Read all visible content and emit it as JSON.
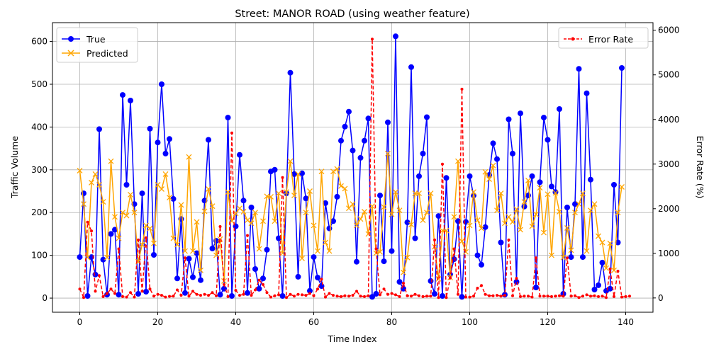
{
  "chart_data": {
    "type": "line",
    "title": "Street: MANOR ROAD (using weather feature)",
    "xlabel": "Time Index",
    "ylabel": "Traffic Volume",
    "y2label": "Error Rate (%)",
    "xlim": [
      -7,
      147
    ],
    "ylim": [
      -33,
      644
    ],
    "y2lim": [
      -320,
      6170
    ],
    "x_ticks": [
      0,
      20,
      40,
      60,
      80,
      100,
      120,
      140
    ],
    "y_ticks": [
      0,
      100,
      200,
      300,
      400,
      500,
      600
    ],
    "y2_ticks": [
      0,
      1000,
      2000,
      3000,
      4000,
      5000,
      6000
    ],
    "grid": true,
    "legend_left": "upper-left",
    "legend_right": "upper-right",
    "series": [
      {
        "name": "True",
        "axis": "left",
        "color": "#0000ff",
        "marker": "circle",
        "values": [
          96,
          245,
          5,
          96,
          55,
          395,
          90,
          8,
          150,
          160,
          8,
          475,
          265,
          462,
          220,
          10,
          245,
          15,
          396,
          101,
          364,
          500,
          338,
          372,
          232,
          46,
          185,
          12,
          92,
          49,
          105,
          42,
          228,
          370,
          116,
          134,
          8,
          22,
          422,
          5,
          168,
          335,
          228,
          12,
          212,
          68,
          22,
          46,
          113,
          296,
          300,
          140,
          5,
          245,
          527,
          290,
          50,
          292,
          233,
          17,
          96,
          48,
          28,
          222,
          163,
          180,
          237,
          368,
          401,
          436,
          345,
          85,
          328,
          368,
          420,
          3,
          10,
          240,
          86,
          411,
          110,
          612,
          38,
          22,
          177,
          540,
          140,
          285,
          338,
          423,
          40,
          10,
          192,
          5,
          281,
          55,
          91,
          180,
          3,
          178,
          285,
          240,
          100,
          78,
          166,
          288,
          362,
          325,
          130,
          8,
          418,
          338,
          38,
          432,
          214,
          240,
          285,
          25,
          271,
          422,
          370,
          261,
          248,
          442,
          10,
          212,
          96,
          220,
          536,
          96,
          479,
          277,
          20,
          30,
          83,
          17,
          22,
          265,
          130,
          538
        ]
      },
      {
        "name": "Predicted",
        "axis": "left",
        "color": "#ffa500",
        "marker": "x",
        "values": [
          298,
          220,
          95,
          270,
          290,
          265,
          225,
          95,
          320,
          190,
          140,
          200,
          193,
          242,
          200,
          85,
          125,
          170,
          163,
          128,
          265,
          255,
          290,
          235,
          140,
          125,
          218,
          110,
          330,
          110,
          178,
          65,
          203,
          255,
          215,
          100,
          138,
          40,
          248,
          180,
          198,
          210,
          202,
          182,
          175,
          200,
          115,
          180,
          238,
          237,
          180,
          245,
          105,
          248,
          320,
          240,
          290,
          93,
          200,
          250,
          170,
          110,
          296,
          130,
          110,
          296,
          302,
          262,
          256,
          210,
          220,
          170,
          185,
          202,
          150,
          215,
          105,
          108,
          213,
          338,
          196,
          248,
          205,
          60,
          95,
          172,
          245,
          245,
          182,
          200,
          245,
          120,
          45,
          158,
          158,
          48,
          190,
          320,
          133,
          108,
          170,
          248,
          182,
          163,
          295,
          278,
          310,
          205,
          245,
          175,
          190,
          178,
          208,
          160,
          225,
          275,
          168,
          196,
          258,
          153,
          243,
          100,
          246,
          202,
          95,
          164,
          112,
          200,
          220,
          245,
          110,
          205,
          220,
          145,
          130,
          70,
          128,
          65,
          200,
          260
        ]
      },
      {
        "name": "Error Rate",
        "axis": "right",
        "color": "#ff0000",
        "marker": "dot",
        "values": [
          200,
          10,
          1700,
          1500,
          150,
          500,
          30,
          100,
          200,
          100,
          1100,
          30,
          20,
          120,
          20,
          1300,
          150,
          1350,
          200,
          40,
          80,
          60,
          20,
          35,
          40,
          180,
          60,
          900,
          40,
          150,
          80,
          60,
          80,
          60,
          120,
          50,
          1600,
          300,
          30,
          3700,
          170,
          60,
          80,
          1400,
          60,
          180,
          400,
          300,
          120,
          20,
          50,
          70,
          2700,
          10,
          80,
          40,
          80,
          70,
          60,
          100,
          50,
          200,
          420,
          20,
          100,
          60,
          40,
          30,
          50,
          40,
          60,
          150,
          40,
          30,
          50,
          5800,
          1100,
          70,
          200,
          80,
          100,
          70,
          30,
          330,
          50,
          40,
          80,
          50,
          30,
          40,
          40,
          1300,
          10,
          3000,
          10,
          450,
          1100,
          80,
          4680,
          20,
          20,
          40,
          220,
          280,
          80,
          50,
          50,
          60,
          40,
          60,
          1300,
          50,
          440,
          30,
          40,
          40,
          20,
          900,
          40,
          40,
          40,
          30,
          40,
          50,
          40,
          900,
          40,
          50,
          10,
          40,
          70,
          40,
          50,
          30,
          40,
          10,
          650,
          30,
          600,
          20,
          30,
          40
        ]
      }
    ]
  }
}
